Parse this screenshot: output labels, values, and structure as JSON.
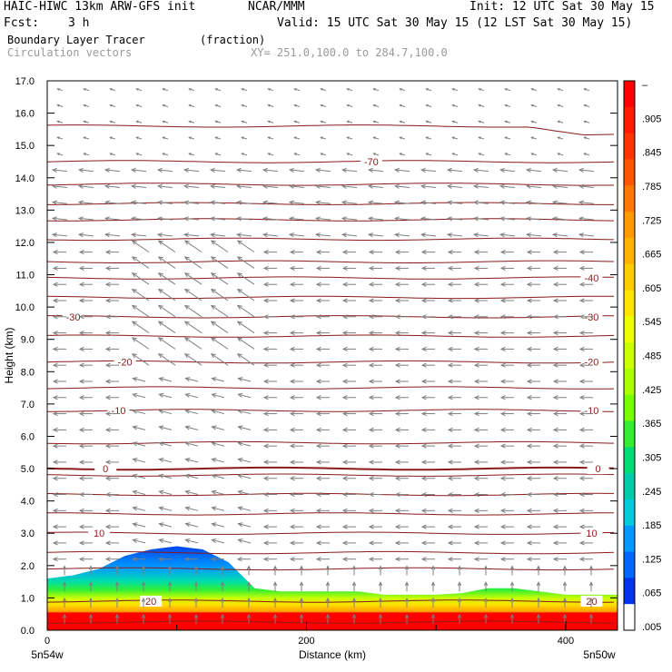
{
  "header": {
    "model": "HAIC-HIWC 13km ARW-GFS init",
    "center": "NCAR/MMM",
    "init": "Init: 12 UTC Sat 30 May 15",
    "fcst_label": "Fcst:",
    "fcst_value": "3 h",
    "valid": "Valid: 15 UTC Sat 30 May 15 (12 LST Sat 30 May 15)",
    "field": "Boundary Layer Tracer",
    "field_units": "(fraction)",
    "overlay": "Circulation vectors",
    "xy": "XY= 251.0,100.0 to 284.7,100.0"
  },
  "colors": {
    "contour": "#8b1a1a",
    "vector": "#7f7f7f"
  },
  "chart_data": {
    "type": "cross-section",
    "xlabel": "Distance (km)",
    "ylabel": "Height (km)",
    "xlim": [
      0,
      440
    ],
    "ylim": [
      0,
      17
    ],
    "x_ticks": [
      {
        "value": 0,
        "label": "0"
      },
      {
        "value": 200,
        "label": "200"
      },
      {
        "value": 400,
        "label": "400"
      }
    ],
    "y_ticks": [
      0,
      1,
      2,
      3,
      4,
      5,
      6,
      7,
      8,
      9,
      10,
      11,
      12,
      13,
      14,
      15,
      16,
      17
    ],
    "y_tick_labels": [
      "0.0",
      "1.0",
      "2.0",
      "3.0",
      "4.0",
      "5.0",
      "6.0",
      "7.0",
      "8.0",
      "9.0",
      "10.0",
      "11.0",
      "12.0",
      "13.0",
      "14.0",
      "15.0",
      "16.0",
      "17.0"
    ],
    "endpoints": {
      "left": "5n54w",
      "right": "5n50w"
    },
    "colorbar": {
      "labels": [
        "–",
        ".905",
        ".845",
        ".785",
        ".725",
        ".665",
        ".605",
        ".545",
        ".485",
        ".425",
        ".365",
        ".305",
        ".245",
        ".185",
        ".125",
        ".065",
        ".005"
      ],
      "colors": [
        "#ff0000",
        "#ff1a00",
        "#ff3300",
        "#ff5500",
        "#ff7700",
        "#ff9900",
        "#ffb300",
        "#ffcc00",
        "#ffe600",
        "#eeff00",
        "#ccff00",
        "#aaff00",
        "#77ff00",
        "#33ee33",
        "#00dd77",
        "#00ccaa",
        "#00ccdd",
        "#0099ff",
        "#0066ff",
        "#0033ee",
        "#ffffff"
      ]
    },
    "temperature_contours": [
      {
        "h": 0.25
      },
      {
        "h": 0.9,
        "label": "20",
        "label_x": [
          80,
          420
        ]
      },
      {
        "h": 1.9
      },
      {
        "h": 2.4
      },
      {
        "h": 3.0,
        "label": "10",
        "label_x": [
          40,
          420
        ]
      },
      {
        "h": 3.6
      },
      {
        "h": 4.2
      },
      {
        "h": 4.8
      },
      {
        "h": 5.0,
        "label": "0",
        "label_x": [
          45,
          425
        ],
        "bold": true
      },
      {
        "h": 5.8
      },
      {
        "h": 6.8,
        "label": "-10",
        "label_x": [
          55,
          420
        ]
      },
      {
        "h": 7.5
      },
      {
        "h": 8.3,
        "label": "-20",
        "label_x": [
          60,
          420
        ]
      },
      {
        "h": 9.1
      },
      {
        "h": 9.7,
        "label": "-30",
        "label_x": [
          20,
          420
        ]
      },
      {
        "h": 10.3
      },
      {
        "h": 10.9,
        "label": "-40",
        "label_x": [
          420
        ]
      },
      {
        "h": 11.4
      },
      {
        "h": 12.1
      },
      {
        "h": 12.7
      },
      {
        "h": 13.2
      },
      {
        "h": 13.8
      },
      {
        "h": 14.5,
        "label": "-70",
        "label_x": [
          250
        ]
      },
      {
        "h": 15.6,
        "dip_at": 400
      }
    ],
    "tracer": {
      "x": [
        0,
        20,
        40,
        60,
        80,
        100,
        120,
        140,
        160,
        180,
        200,
        220,
        240,
        260,
        280,
        300,
        320,
        340,
        360,
        380,
        400,
        420,
        440
      ],
      "top_km": [
        1.6,
        1.7,
        1.9,
        2.3,
        2.5,
        2.6,
        2.5,
        2.1,
        1.3,
        1.2,
        1.2,
        1.2,
        1.2,
        1.1,
        1.1,
        1.1,
        1.15,
        1.3,
        1.3,
        1.2,
        1.1,
        1.1,
        1.1
      ]
    }
  }
}
